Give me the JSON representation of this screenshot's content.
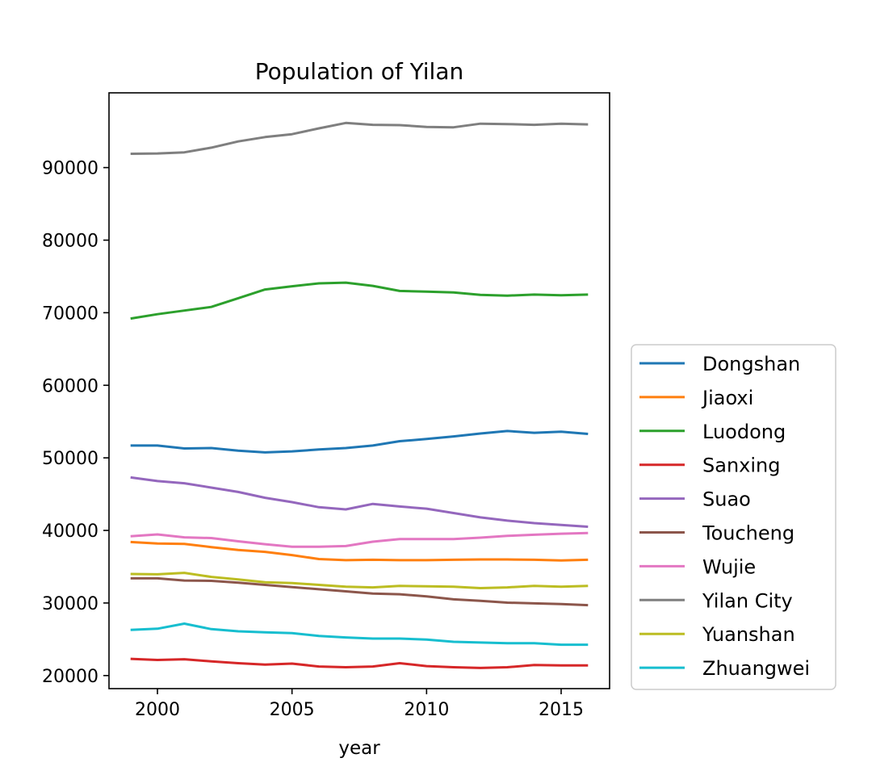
{
  "chart_data": {
    "type": "line",
    "title": "Population of Yilan",
    "xlabel": "year",
    "ylabel": "",
    "xlim": [
      1998.2,
      2016.8
    ],
    "ylim": [
      18200,
      100300
    ],
    "xticks": [
      2000,
      2005,
      2010,
      2015
    ],
    "yticks": [
      20000,
      30000,
      40000,
      50000,
      60000,
      70000,
      80000,
      90000
    ],
    "grid": false,
    "legend_position": "lower-right-outside",
    "x": [
      1999,
      2000,
      2001,
      2002,
      2003,
      2004,
      2005,
      2006,
      2007,
      2008,
      2009,
      2010,
      2011,
      2012,
      2013,
      2014,
      2015,
      2016
    ],
    "series": [
      {
        "name": "Dongshan",
        "color": "#1f77b4",
        "values": [
          51700,
          51700,
          51300,
          51350,
          51000,
          50750,
          50900,
          51150,
          51350,
          51700,
          52300,
          52600,
          52950,
          53350,
          53700,
          53450,
          53600,
          53300
        ]
      },
      {
        "name": "Jiaoxi",
        "color": "#ff7f0e",
        "values": [
          38400,
          38200,
          38150,
          37700,
          37300,
          37050,
          36600,
          36050,
          35900,
          35950,
          35900,
          35900,
          35950,
          36000,
          36000,
          35950,
          35850,
          35950
        ]
      },
      {
        "name": "Luodong",
        "color": "#2ca02c",
        "values": [
          69200,
          69800,
          70300,
          70800,
          72000,
          73200,
          73650,
          74050,
          74150,
          73700,
          73000,
          72900,
          72800,
          72450,
          72350,
          72500,
          72400,
          72500
        ]
      },
      {
        "name": "Sanxing",
        "color": "#d62728",
        "values": [
          22300,
          22150,
          22250,
          21950,
          21700,
          21500,
          21650,
          21250,
          21150,
          21250,
          21700,
          21300,
          21150,
          21050,
          21150,
          21450,
          21400,
          21400
        ]
      },
      {
        "name": "Suao",
        "color": "#9467bd",
        "values": [
          47300,
          46800,
          46500,
          45900,
          45300,
          44500,
          43900,
          43200,
          42900,
          43650,
          43300,
          43000,
          42400,
          41800,
          41350,
          41000,
          40750,
          40500
        ]
      },
      {
        "name": "Toucheng",
        "color": "#8c564b",
        "values": [
          33400,
          33400,
          33100,
          33050,
          32800,
          32500,
          32200,
          31900,
          31600,
          31300,
          31200,
          30900,
          30500,
          30300,
          30050,
          29950,
          29850,
          29700
        ]
      },
      {
        "name": "Wujie",
        "color": "#e377c2",
        "values": [
          39200,
          39450,
          39050,
          38950,
          38500,
          38100,
          37750,
          37750,
          37850,
          38450,
          38800,
          38800,
          38800,
          39000,
          39250,
          39400,
          39550,
          39650
        ]
      },
      {
        "name": "Yilan City",
        "color": "#7f7f7f",
        "values": [
          91900,
          91950,
          92100,
          92750,
          93600,
          94200,
          94600,
          95400,
          96150,
          95900,
          95850,
          95600,
          95550,
          96050,
          96000,
          95900,
          96050,
          95950
        ]
      },
      {
        "name": "Yuanshan",
        "color": "#bcbd22",
        "values": [
          34000,
          33950,
          34150,
          33600,
          33250,
          32850,
          32750,
          32500,
          32250,
          32150,
          32350,
          32300,
          32250,
          32050,
          32150,
          32350,
          32250,
          32350
        ]
      },
      {
        "name": "Zhuangwei",
        "color": "#17becf",
        "values": [
          26300,
          26450,
          27150,
          26400,
          26100,
          25950,
          25850,
          25450,
          25250,
          25100,
          25100,
          24950,
          24650,
          24550,
          24450,
          24450,
          24250,
          24250
        ]
      }
    ]
  }
}
